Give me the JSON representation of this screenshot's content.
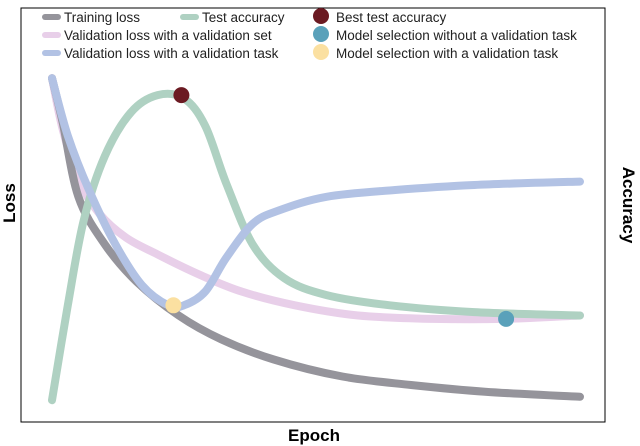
{
  "chart_data": {
    "type": "line",
    "title": "",
    "xlabel": "Epoch",
    "ylabel_left": "Loss",
    "ylabel_right": "Accuracy",
    "grid": false,
    "legend_position": "top-left",
    "ticks": "none",
    "x_range": [
      0,
      100
    ],
    "y_range": [
      0,
      1
    ],
    "series": [
      {
        "key": "training",
        "name": "Training loss",
        "color": "#95949b",
        "axis": "left",
        "points": [
          [
            0,
            0.97
          ],
          [
            2,
            0.84
          ],
          [
            5,
            0.62
          ],
          [
            10,
            0.48
          ],
          [
            16,
            0.37
          ],
          [
            24,
            0.27
          ],
          [
            32,
            0.2
          ],
          [
            42,
            0.14
          ],
          [
            55,
            0.09
          ],
          [
            68,
            0.065
          ],
          [
            82,
            0.045
          ],
          [
            100,
            0.03
          ]
        ]
      },
      {
        "key": "val_set",
        "name": "Validation loss with a validation set",
        "color": "#e8cfe9",
        "axis": "left",
        "points": [
          [
            0,
            0.97
          ],
          [
            2,
            0.82
          ],
          [
            5,
            0.67
          ],
          [
            9,
            0.57
          ],
          [
            14,
            0.5
          ],
          [
            20,
            0.45
          ],
          [
            28,
            0.39
          ],
          [
            36,
            0.34
          ],
          [
            46,
            0.3
          ],
          [
            58,
            0.27
          ],
          [
            72,
            0.26
          ],
          [
            86,
            0.26
          ],
          [
            100,
            0.27
          ]
        ]
      },
      {
        "key": "val_task",
        "name": "Validation loss with a validation task",
        "color": "#b2c2e4",
        "axis": "left",
        "points": [
          [
            0,
            0.97
          ],
          [
            3,
            0.8
          ],
          [
            7,
            0.64
          ],
          [
            12,
            0.48
          ],
          [
            17,
            0.36
          ],
          [
            22,
            0.3
          ],
          [
            25,
            0.3
          ],
          [
            29,
            0.34
          ],
          [
            33,
            0.44
          ],
          [
            38,
            0.54
          ],
          [
            43,
            0.58
          ],
          [
            52,
            0.62
          ],
          [
            65,
            0.64
          ],
          [
            80,
            0.655
          ],
          [
            100,
            0.665
          ]
        ]
      },
      {
        "key": "test_acc",
        "name": "Test accuracy",
        "color": "#afd1c2",
        "axis": "right",
        "points": [
          [
            0,
            0.02
          ],
          [
            3,
            0.3
          ],
          [
            6,
            0.55
          ],
          [
            10,
            0.74
          ],
          [
            15,
            0.87
          ],
          [
            20,
            0.92
          ],
          [
            25,
            0.91
          ],
          [
            29,
            0.83
          ],
          [
            33,
            0.66
          ],
          [
            38,
            0.48
          ],
          [
            44,
            0.38
          ],
          [
            52,
            0.33
          ],
          [
            64,
            0.3
          ],
          [
            80,
            0.28
          ],
          [
            100,
            0.27
          ]
        ]
      }
    ],
    "markers": [
      {
        "key": "best",
        "name": "Best test accuracy",
        "color": "#6b1a22",
        "x": 24.5,
        "y": 0.92
      },
      {
        "key": "sel_without",
        "name": "Model selection without a validation task",
        "color": "#5aa1ba",
        "x": 86,
        "y": 0.26
      },
      {
        "key": "sel_with",
        "name": "Model selection with a validation task",
        "color": "#fbe0a1",
        "x": 23,
        "y": 0.3
      }
    ]
  }
}
